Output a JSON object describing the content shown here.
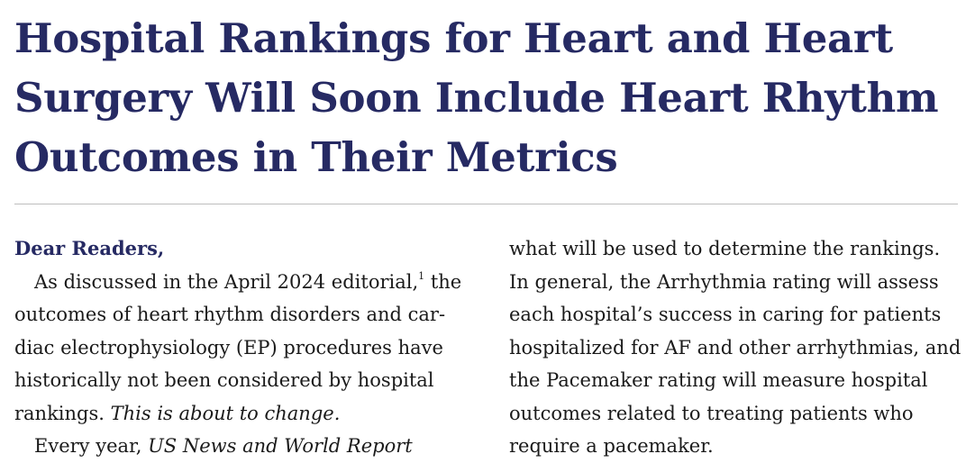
{
  "article": {
    "title_lines": [
      "Hospital Rankings for Heart and Heart",
      "Surgery Will Soon Include Heart Rhythm",
      "Outcomes in Their Metrics"
    ],
    "salutation": "Dear Readers,",
    "left_column": {
      "line1_before_ref": "As discussed in the April 2024 editorial,",
      "ref": "1",
      "line1_after_ref": " the",
      "line2": "outcomes of heart rhythm disorders and car-",
      "line3": "diac electrophysiology (EP) procedures have",
      "line4": "historically not been considered by hospital",
      "line5_plain": "rankings. ",
      "line5_italic": "This is about to change.",
      "line6_plain": "Every year, ",
      "line6_italic": "US News and World Report"
    },
    "right_column": {
      "lines": [
        "what will be used to determine the rankings.",
        "In general, the Arrhythmia rating will assess",
        "each hospital’s success in caring for patients",
        "hospitalized for AF and other arrhythmias, and",
        "the Pacemaker rating will measure hospital",
        "outcomes related to treating patients who",
        "require a pacemaker."
      ]
    }
  }
}
